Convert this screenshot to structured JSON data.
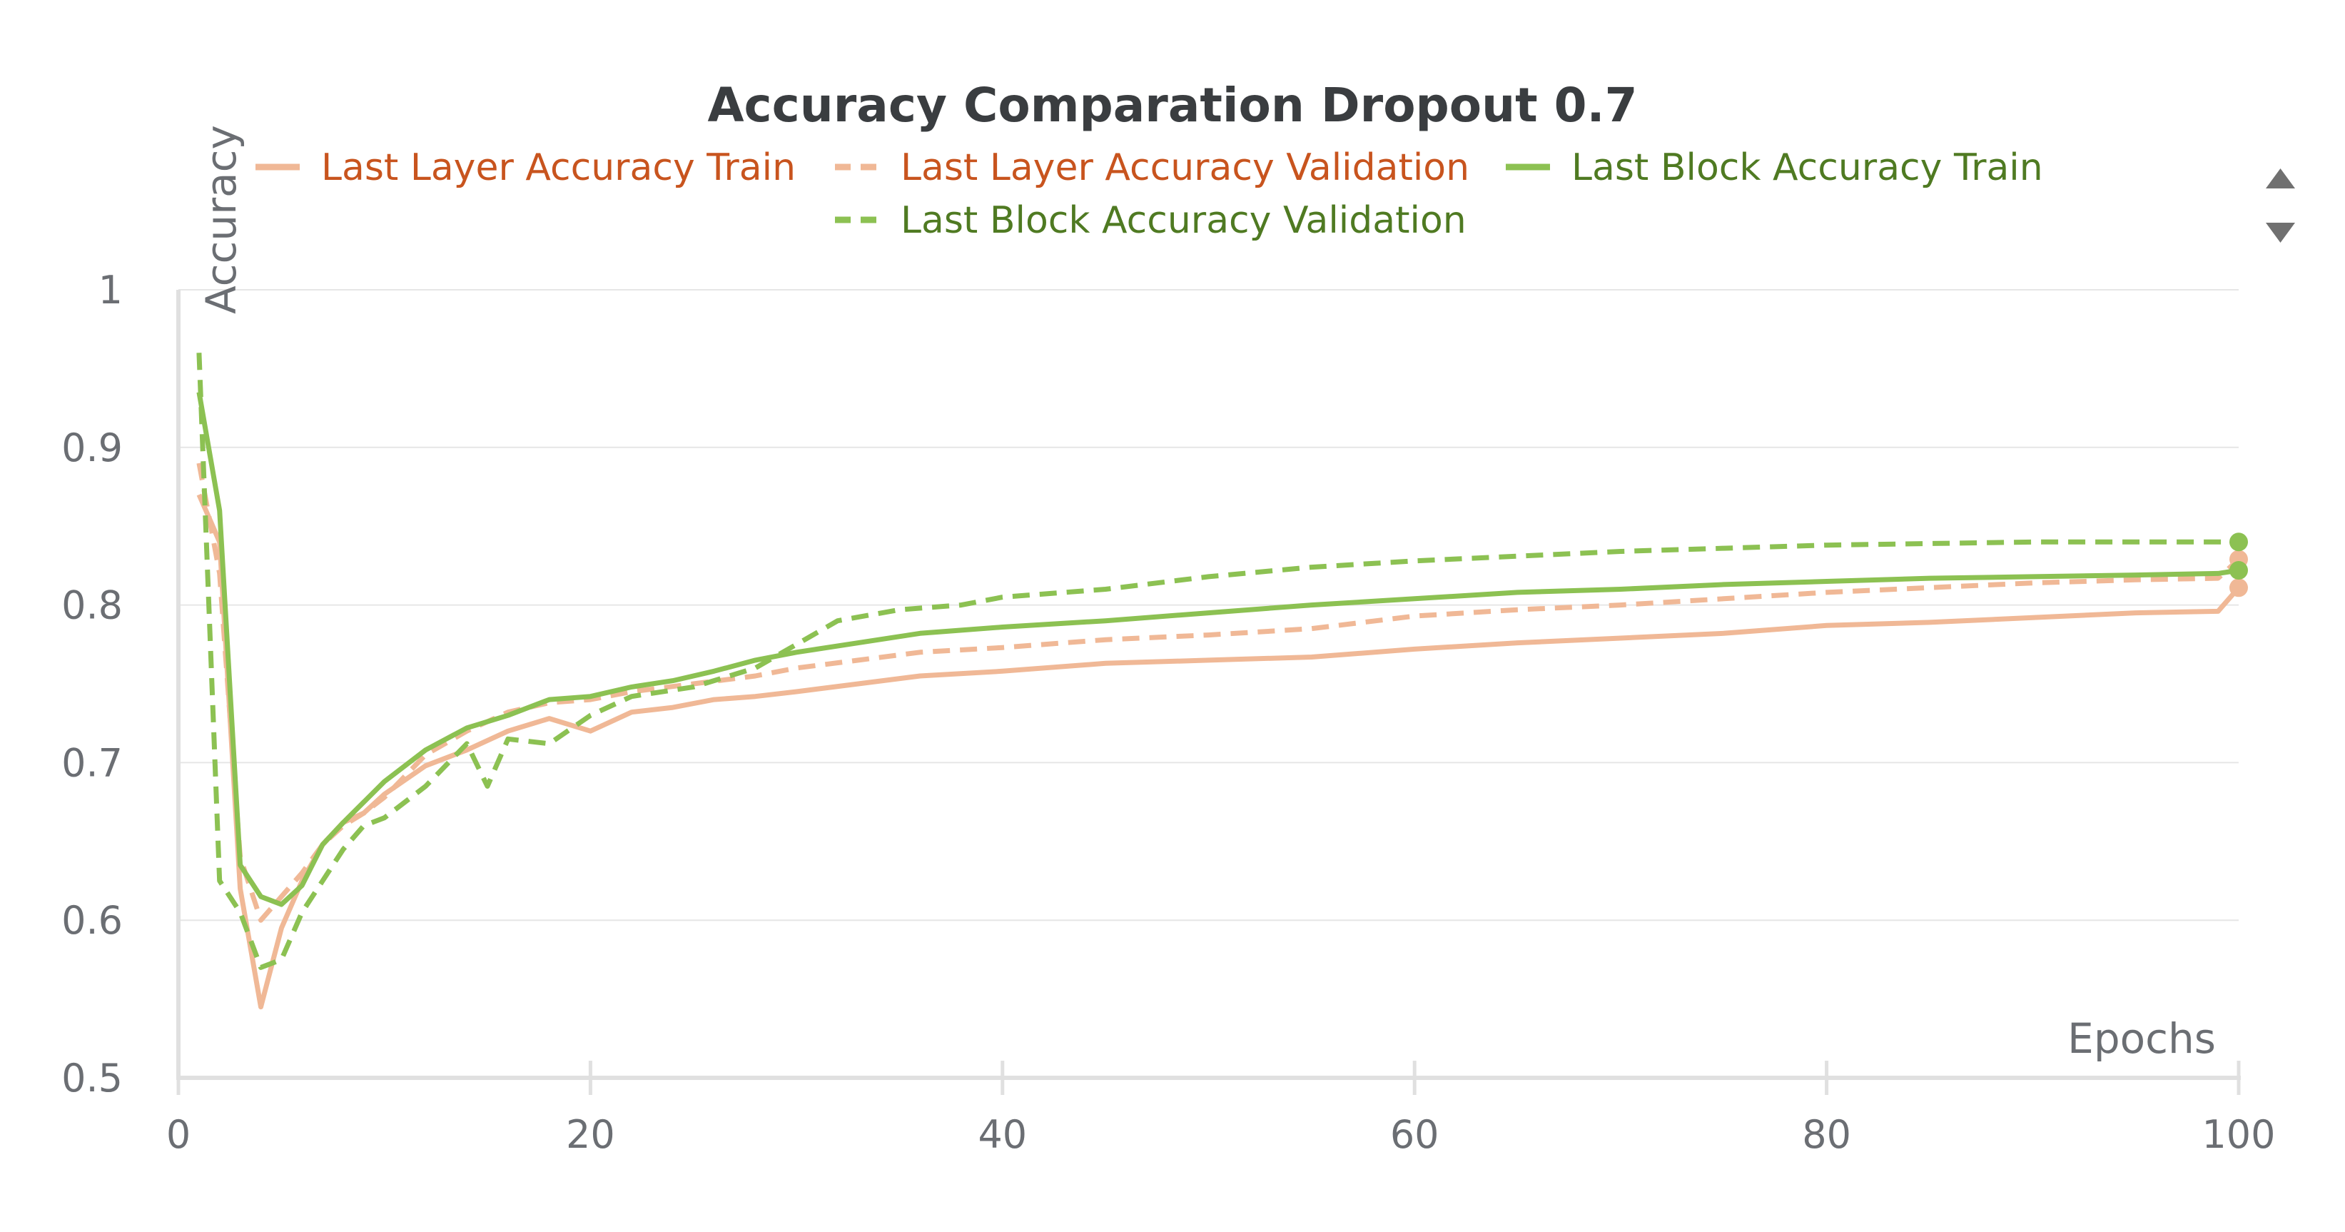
{
  "chart_data": {
    "type": "line",
    "title": "Accuracy Comparation Dropout 0.7",
    "xlabel": "Epochs",
    "ylabel": "Accuracy",
    "xlim": [
      0,
      100
    ],
    "ylim": [
      0.5,
      1
    ],
    "xticks": [
      0,
      20,
      40,
      60,
      80,
      100
    ],
    "yticks": [
      0.5,
      0.6,
      0.7,
      0.8,
      0.9,
      1
    ],
    "ytick_labels": [
      "0.5",
      "0.6",
      "0.7",
      "0.8",
      "0.9",
      "1"
    ],
    "grid": true,
    "legend_position": "top",
    "series": [
      {
        "name": "Last Layer Accuracy Train",
        "color": "#f0b896",
        "label_color": "#c8541e",
        "dash": "solid",
        "x": [
          1,
          2,
          3,
          4,
          5,
          6,
          7,
          8,
          9,
          10,
          12,
          14,
          16,
          18,
          20,
          22,
          24,
          26,
          28,
          30,
          33,
          36,
          40,
          45,
          50,
          55,
          60,
          65,
          70,
          75,
          80,
          85,
          90,
          95,
          99,
          100
        ],
        "y": [
          0.87,
          0.84,
          0.62,
          0.545,
          0.595,
          0.625,
          0.648,
          0.662,
          0.668,
          0.68,
          0.698,
          0.708,
          0.72,
          0.728,
          0.72,
          0.732,
          0.735,
          0.74,
          0.742,
          0.745,
          0.75,
          0.755,
          0.758,
          0.763,
          0.765,
          0.767,
          0.772,
          0.776,
          0.779,
          0.782,
          0.787,
          0.789,
          0.792,
          0.795,
          0.796,
          0.811
        ]
      },
      {
        "name": "Last Layer Accuracy Validation",
        "color": "#f0b896",
        "label_color": "#c8541e",
        "dash": "dashed",
        "x": [
          1,
          2,
          3,
          4,
          5,
          6,
          7,
          8,
          9,
          10,
          12,
          14,
          16,
          18,
          20,
          22,
          25,
          28,
          30,
          33,
          36,
          40,
          45,
          50,
          55,
          60,
          65,
          70,
          75,
          80,
          85,
          90,
          95,
          99,
          100
        ],
        "y": [
          0.89,
          0.82,
          0.64,
          0.6,
          0.615,
          0.63,
          0.648,
          0.66,
          0.668,
          0.678,
          0.705,
          0.72,
          0.732,
          0.738,
          0.74,
          0.745,
          0.75,
          0.755,
          0.76,
          0.765,
          0.77,
          0.773,
          0.778,
          0.781,
          0.785,
          0.793,
          0.797,
          0.8,
          0.804,
          0.808,
          0.811,
          0.814,
          0.816,
          0.817,
          0.829
        ]
      },
      {
        "name": "Last Block Accuracy Train",
        "color": "#8cc152",
        "label_color": "#4f7a22",
        "dash": "solid",
        "x": [
          1,
          2,
          3,
          4,
          5,
          6,
          7,
          8,
          9,
          10,
          12,
          14,
          16,
          18,
          20,
          22,
          24,
          26,
          28,
          30,
          33,
          36,
          40,
          45,
          50,
          55,
          60,
          65,
          70,
          75,
          80,
          85,
          90,
          95,
          99,
          100
        ],
        "y": [
          0.935,
          0.86,
          0.635,
          0.615,
          0.61,
          0.622,
          0.648,
          0.662,
          0.675,
          0.688,
          0.708,
          0.722,
          0.73,
          0.74,
          0.742,
          0.748,
          0.752,
          0.758,
          0.765,
          0.77,
          0.776,
          0.782,
          0.786,
          0.79,
          0.795,
          0.8,
          0.804,
          0.808,
          0.81,
          0.813,
          0.815,
          0.817,
          0.818,
          0.819,
          0.82,
          0.822
        ]
      },
      {
        "name": "Last Block Accuracy Validation",
        "color": "#8cc152",
        "label_color": "#4f7a22",
        "dash": "dashed",
        "x": [
          1,
          2,
          3,
          4,
          5,
          6,
          7,
          8,
          9,
          10,
          12,
          14,
          15,
          16,
          18,
          20,
          22,
          25,
          28,
          30,
          32,
          35,
          38,
          40,
          45,
          50,
          55,
          60,
          65,
          70,
          75,
          80,
          85,
          90,
          95,
          99,
          100
        ],
        "y": [
          0.96,
          0.625,
          0.605,
          0.57,
          0.575,
          0.605,
          0.625,
          0.645,
          0.66,
          0.665,
          0.685,
          0.712,
          0.685,
          0.715,
          0.712,
          0.73,
          0.742,
          0.748,
          0.76,
          0.775,
          0.79,
          0.797,
          0.8,
          0.805,
          0.81,
          0.818,
          0.824,
          0.828,
          0.831,
          0.834,
          0.836,
          0.838,
          0.839,
          0.84,
          0.84,
          0.84,
          0.84
        ]
      }
    ]
  }
}
